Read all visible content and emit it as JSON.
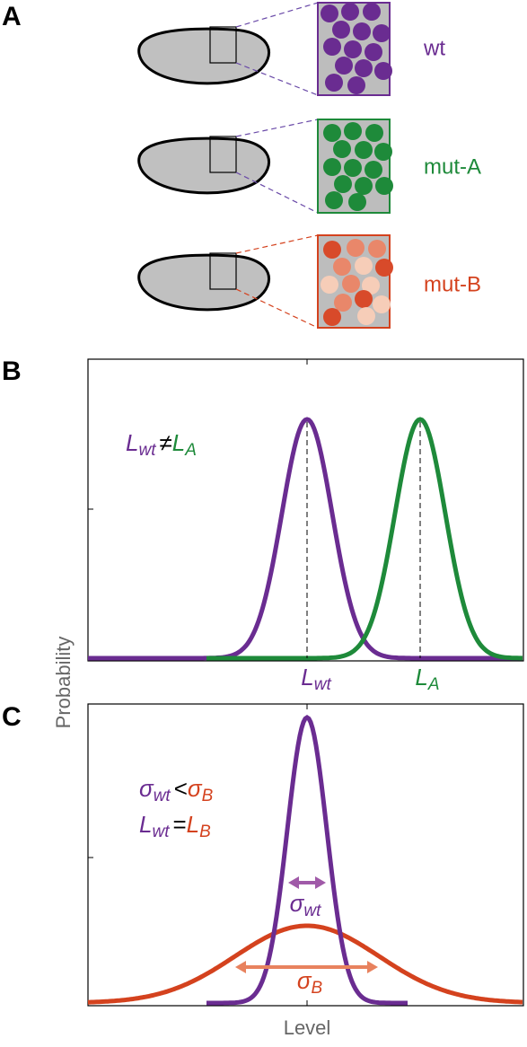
{
  "panels": {
    "a": {
      "label": "A",
      "genotypes": [
        {
          "name": "wt",
          "color": "#6a2c91"
        },
        {
          "name": "mut-A",
          "color": "#1e8a3a"
        },
        {
          "name": "mut-B",
          "color": "#d4421e"
        }
      ]
    },
    "b": {
      "label": "B",
      "equation": {
        "left": {
          "symbol": "L",
          "sub": "wt"
        },
        "op": "≠",
        "right": {
          "symbol": "L",
          "sub": "A"
        }
      },
      "peak_labels": [
        {
          "symbol": "L",
          "sub": "wt"
        },
        {
          "symbol": "L",
          "sub": "A"
        }
      ]
    },
    "c": {
      "label": "C",
      "equations": [
        {
          "left": {
            "symbol": "σ",
            "sub": "wt"
          },
          "op": "<",
          "right": {
            "symbol": "σ",
            "sub": "B"
          }
        },
        {
          "left": {
            "symbol": "L",
            "sub": "wt"
          },
          "op": "=",
          "right": {
            "symbol": "L",
            "sub": "B"
          }
        }
      ],
      "width_labels": [
        {
          "symbol": "σ",
          "sub": "wt"
        },
        {
          "symbol": "σ",
          "sub": "B"
        }
      ]
    }
  },
  "y_label": "Probability",
  "x_label": "Level"
}
